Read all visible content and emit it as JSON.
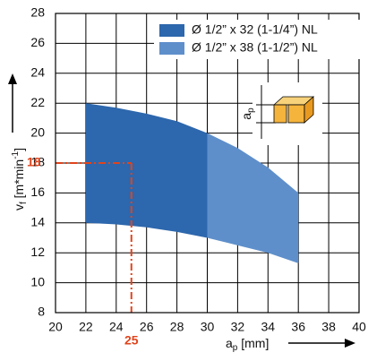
{
  "chart_data": {
    "type": "range_area",
    "xlim": [
      20,
      40
    ],
    "ylim": [
      8,
      28
    ],
    "xticks": [
      20,
      22,
      24,
      26,
      28,
      30,
      32,
      34,
      36,
      38,
      40
    ],
    "yticks": [
      8,
      10,
      12,
      14,
      16,
      18,
      20,
      22,
      24,
      26,
      28
    ],
    "grid": true,
    "legend": "top-right",
    "x_label": {
      "symbol": "a",
      "sub": "p",
      "unit": "[mm]"
    },
    "y_label": {
      "symbol": "v",
      "sub": "f",
      "unit": "[m*min",
      "sup": "-1",
      "close": "]"
    },
    "inset_label": {
      "symbol": "a",
      "sub": "p"
    },
    "reference": {
      "x": 25,
      "y": 18,
      "color": "#e0441c"
    },
    "series": [
      {
        "name": "Ø 1/2” x 32 (1-1/4”) NL",
        "color": "#2d67ad",
        "x": [
          22,
          24,
          26,
          28,
          30
        ],
        "upper": [
          22,
          21.7,
          21.3,
          20.8,
          20
        ],
        "lower": [
          14,
          13.9,
          13.7,
          13.4,
          13
        ]
      },
      {
        "name": "Ø 1/2” x 38 (1-1/2”) NL",
        "color": "#5e8fcb",
        "x": [
          30,
          32,
          34,
          36
        ],
        "upper": [
          20,
          19,
          17.7,
          16
        ],
        "lower": [
          13,
          12.5,
          12,
          11.3
        ]
      }
    ]
  }
}
